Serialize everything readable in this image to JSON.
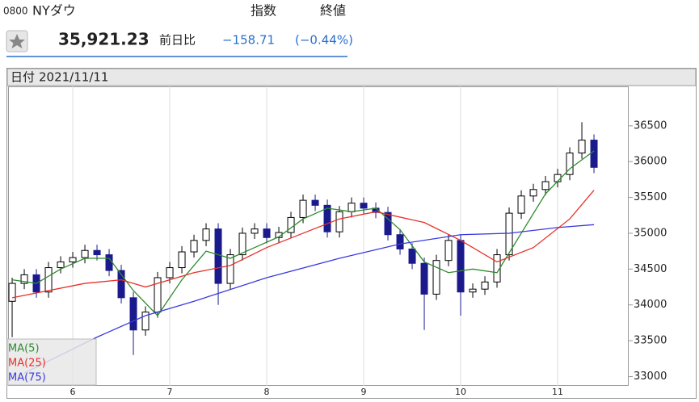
{
  "header": {
    "code": "0800",
    "name": "NYダウ",
    "index_type": "指数",
    "price_type": "終値"
  },
  "quote": {
    "price": "35,921.23",
    "change_label": "前日比",
    "change": "−158.71",
    "change_pct": "(−0.44%)"
  },
  "chart_data": {
    "type": "candlestick",
    "date_label": "日付",
    "date": "2021/11/11",
    "x": [
      5.375,
      5.5,
      5.625,
      5.75,
      5.875,
      6.0,
      6.125,
      6.25,
      6.375,
      6.5,
      6.625,
      6.75,
      6.875,
      7.0,
      7.125,
      7.25,
      7.375,
      7.5,
      7.625,
      7.75,
      7.875,
      8.0,
      8.125,
      8.25,
      8.375,
      8.5,
      8.625,
      8.75,
      8.875,
      9.0,
      9.125,
      9.25,
      9.375,
      9.5,
      9.625,
      9.75,
      9.875,
      10.0,
      10.125,
      10.25,
      10.375,
      10.5,
      10.625,
      10.75,
      10.875,
      11.0,
      11.125,
      11.25,
      11.375
    ],
    "open": [
      34050,
      34300,
      34420,
      34180,
      34520,
      34600,
      34660,
      34760,
      34700,
      34480,
      34100,
      33650,
      33900,
      34380,
      34520,
      34740,
      34900,
      35060,
      34300,
      34700,
      35000,
      35060,
      34940,
      35010,
      35220,
      35460,
      35390,
      35020,
      35300,
      35420,
      35350,
      35290,
      34980,
      34780,
      34580,
      34150,
      34620,
      34900,
      34180,
      34220,
      34320,
      34700,
      35280,
      35520,
      35610,
      35720,
      35820,
      36120,
      36300
    ],
    "high": [
      34380,
      34500,
      34500,
      34600,
      34680,
      34740,
      34840,
      34840,
      34780,
      34560,
      34180,
      33980,
      34460,
      34600,
      34820,
      34980,
      35140,
      35140,
      34780,
      35080,
      35140,
      35140,
      35090,
      35300,
      35540,
      35540,
      35470,
      35380,
      35500,
      35500,
      35430,
      35370,
      35060,
      34860,
      34660,
      34700,
      34980,
      34980,
      34300,
      34400,
      34780,
      35360,
      35600,
      35690,
      35800,
      35900,
      36200,
      36550,
      36380
    ],
    "low": [
      33550,
      34220,
      34100,
      34100,
      34440,
      34520,
      34580,
      34620,
      34400,
      34020,
      33300,
      33570,
      33820,
      34300,
      34440,
      34660,
      34820,
      34000,
      34220,
      34620,
      34920,
      34860,
      34860,
      34930,
      35140,
      35310,
      34940,
      34940,
      35220,
      35270,
      35210,
      34900,
      34700,
      34500,
      33650,
      34070,
      34540,
      33850,
      34100,
      34140,
      34240,
      34620,
      35200,
      35440,
      35530,
      35640,
      35740,
      36040,
      35840
    ],
    "close": [
      34300,
      34420,
      34180,
      34520,
      34600,
      34660,
      34760,
      34700,
      34480,
      34100,
      33650,
      33900,
      34380,
      34520,
      34740,
      34900,
      35060,
      34300,
      34700,
      35000,
      35060,
      34940,
      35010,
      35220,
      35460,
      35390,
      35020,
      35300,
      35420,
      35350,
      35290,
      34980,
      34780,
      34580,
      34150,
      34620,
      34900,
      34180,
      34220,
      34320,
      34700,
      35280,
      35520,
      35610,
      35720,
      35820,
      36120,
      36300,
      35920
    ],
    "up_color": "#ffffff",
    "down_color": "#1a1a8c",
    "series": [
      {
        "name": "MA(5)",
        "color": "#2e8b2e",
        "x": [
          5.375,
          5.625,
          5.875,
          6.125,
          6.375,
          6.625,
          6.875,
          7.125,
          7.375,
          7.625,
          7.875,
          8.125,
          8.375,
          8.625,
          8.875,
          9.125,
          9.375,
          9.625,
          9.875,
          10.125,
          10.375,
          10.625,
          10.875,
          11.125,
          11.375
        ],
        "values": [
          34350,
          34300,
          34500,
          34650,
          34650,
          34200,
          33850,
          34350,
          34750,
          34650,
          34800,
          34950,
          35200,
          35350,
          35300,
          35350,
          35050,
          34600,
          34450,
          34500,
          34450,
          35000,
          35550,
          35900,
          36150
        ]
      },
      {
        "name": "MA(25)",
        "color": "#e8302a",
        "x": [
          5.375,
          6.125,
          6.5,
          6.75,
          7.25,
          7.625,
          8.0,
          8.375,
          8.75,
          9.125,
          9.625,
          10.0,
          10.375,
          10.75,
          11.125,
          11.375
        ],
        "values": [
          34100,
          34300,
          34350,
          34250,
          34450,
          34550,
          34800,
          35000,
          35200,
          35300,
          35150,
          34900,
          34600,
          34800,
          35200,
          35600
        ]
      },
      {
        "name": "MA(75)",
        "color": "#3a3ae0",
        "x": [
          5.5,
          6.25,
          6.75,
          7.25,
          8.0,
          8.75,
          9.375,
          10.0,
          10.5,
          11.0,
          11.375
        ],
        "values": [
          33050,
          33550,
          33850,
          34050,
          34380,
          34650,
          34850,
          34980,
          35000,
          35080,
          35120
        ]
      }
    ],
    "xlim": [
      5.333,
      11.733
    ],
    "ylim": [
      32870,
      37050
    ],
    "xticks": [
      6,
      7,
      8,
      9,
      10,
      11
    ],
    "yticks": [
      33000,
      33500,
      34000,
      34500,
      35000,
      35500,
      36000,
      36500
    ],
    "grid": true,
    "legend": "lower left"
  }
}
